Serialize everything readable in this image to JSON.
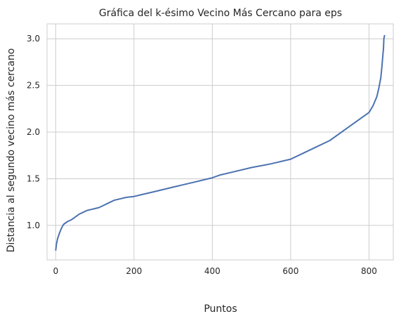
{
  "chart_data": {
    "type": "line",
    "title": "Gráfica del k-ésimo Vecino Más Cercano para eps",
    "xlabel": "Puntos",
    "ylabel": "Distancia al segundo vecino más cercano",
    "xlim": [
      -22,
      862
    ],
    "ylim": [
      0.63,
      3.16
    ],
    "xticks": [
      0,
      200,
      400,
      600,
      800
    ],
    "yticks": [
      1.0,
      1.5,
      2.0,
      2.5,
      3.0
    ],
    "xtick_labels": [
      "0",
      "200",
      "400",
      "600",
      "800"
    ],
    "ytick_labels": [
      "1.0",
      "1.5",
      "2.0",
      "2.5",
      "3.0"
    ],
    "grid": true,
    "line_color": "#4c72b0",
    "series": [
      {
        "x": [
          0,
          2,
          5,
          10,
          15,
          20,
          30,
          40,
          50,
          60,
          70,
          80,
          90,
          100,
          110,
          120,
          130,
          140,
          150,
          160,
          180,
          200,
          220,
          250,
          300,
          350,
          400,
          420,
          450,
          500,
          550,
          600,
          620,
          650,
          700,
          750,
          780,
          800,
          810,
          820,
          825,
          830,
          833,
          835,
          837,
          838,
          840
        ],
        "y": [
          0.73,
          0.8,
          0.86,
          0.92,
          0.97,
          1.01,
          1.04,
          1.06,
          1.09,
          1.12,
          1.14,
          1.16,
          1.17,
          1.18,
          1.19,
          1.21,
          1.23,
          1.25,
          1.27,
          1.28,
          1.3,
          1.31,
          1.33,
          1.36,
          1.41,
          1.46,
          1.51,
          1.54,
          1.57,
          1.62,
          1.66,
          1.71,
          1.75,
          1.81,
          1.91,
          2.06,
          2.15,
          2.21,
          2.28,
          2.38,
          2.47,
          2.58,
          2.7,
          2.8,
          2.9,
          3.0,
          3.04
        ]
      }
    ]
  }
}
